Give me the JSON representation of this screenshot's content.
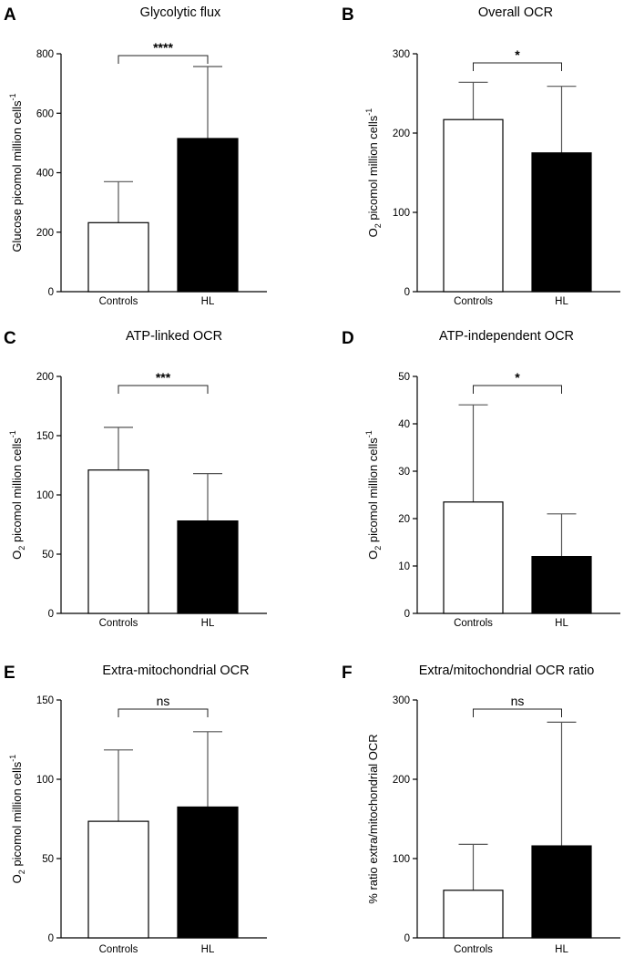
{
  "chart_data": [
    {
      "panel": "A",
      "type": "bar",
      "title": "Glycolytic flux",
      "ylabel_main": "Glucose picomol million cells",
      "ylabel_sup": "-1",
      "ylabel_sub": "",
      "categories": [
        "Controls",
        "HL"
      ],
      "values": [
        232,
        515
      ],
      "errors": [
        138,
        242
      ],
      "bar_fill": [
        "#ffffff",
        "#000000"
      ],
      "ylim": [
        0,
        800
      ],
      "yticks": [
        0,
        200,
        400,
        600,
        800
      ],
      "significance": "****",
      "sig_bold": true
    },
    {
      "panel": "B",
      "type": "bar",
      "title": "Overall OCR",
      "ylabel_main": " picomol million cells",
      "ylabel_prefix": "O",
      "ylabel_sub": "2",
      "ylabel_sup": "-1",
      "categories": [
        "Controls",
        "HL"
      ],
      "values": [
        217,
        175
      ],
      "errors": [
        47,
        84
      ],
      "bar_fill": [
        "#ffffff",
        "#000000"
      ],
      "ylim": [
        0,
        300
      ],
      "yticks": [
        0,
        100,
        200,
        300
      ],
      "significance": "*",
      "sig_bold": true
    },
    {
      "panel": "C",
      "type": "bar",
      "title": "ATP-linked OCR",
      "ylabel_main": " picomol million cells",
      "ylabel_prefix": "O",
      "ylabel_sub": "2",
      "ylabel_sup": "-1",
      "categories": [
        "Controls",
        "HL"
      ],
      "values": [
        121,
        78
      ],
      "errors": [
        36,
        40
      ],
      "bar_fill": [
        "#ffffff",
        "#000000"
      ],
      "ylim": [
        0,
        200
      ],
      "yticks": [
        0,
        50,
        100,
        150,
        200
      ],
      "significance": "***",
      "sig_bold": true
    },
    {
      "panel": "D",
      "type": "bar",
      "title": "ATP-independent OCR",
      "ylabel_main": " picomol million cells",
      "ylabel_prefix": "O",
      "ylabel_sub": "2",
      "ylabel_sup": "-1",
      "categories": [
        "Controls",
        "HL"
      ],
      "values": [
        23.5,
        12
      ],
      "errors": [
        20.5,
        9
      ],
      "bar_fill": [
        "#ffffff",
        "#000000"
      ],
      "ylim": [
        0,
        50
      ],
      "yticks": [
        0,
        10,
        20,
        30,
        40,
        50
      ],
      "significance": "*",
      "sig_bold": true
    },
    {
      "panel": "E",
      "type": "bar",
      "title": "Extra-mitochondrial OCR",
      "ylabel_main": " picomol million cells",
      "ylabel_prefix": "O",
      "ylabel_sub": "2",
      "ylabel_sup": "-1",
      "categories": [
        "Controls",
        "HL"
      ],
      "values": [
        73.5,
        82.5
      ],
      "errors": [
        45,
        47.5
      ],
      "bar_fill": [
        "#ffffff",
        "#000000"
      ],
      "ylim": [
        0,
        150
      ],
      "yticks": [
        0,
        50,
        100,
        150
      ],
      "significance": "ns",
      "sig_bold": false
    },
    {
      "panel": "F",
      "type": "bar",
      "title": "Extra/mitochondrial OCR ratio",
      "ylabel_main": "% ratio extra/mitochondrial OCR",
      "ylabel_sub": "",
      "ylabel_sup": "",
      "categories": [
        "Controls",
        "HL"
      ],
      "values": [
        60,
        116
      ],
      "errors": [
        58,
        156
      ],
      "bar_fill": [
        "#ffffff",
        "#000000"
      ],
      "ylim": [
        0,
        300
      ],
      "yticks": [
        0,
        100,
        200,
        300
      ],
      "significance": "ns",
      "sig_bold": false
    }
  ]
}
